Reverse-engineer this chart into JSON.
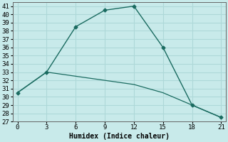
{
  "title": "",
  "xlabel": "Humidex (Indice chaleur)",
  "background_color": "#c8eaea",
  "grid_color": "#aed8d8",
  "line_color": "#1a6b60",
  "x": [
    0,
    3,
    6,
    9,
    12,
    15,
    18,
    21
  ],
  "line1_y": [
    30.5,
    33.0,
    38.5,
    40.5,
    41.0,
    36.0,
    29.0,
    27.5
  ],
  "line2_y": [
    30.5,
    33.0,
    32.5,
    32.0,
    31.5,
    30.5,
    29.0,
    27.5
  ],
  "ylim": [
    27,
    41.5
  ],
  "xlim": [
    -0.5,
    21.5
  ],
  "xticks": [
    0,
    3,
    6,
    9,
    12,
    15,
    18,
    21
  ],
  "yticks": [
    27,
    28,
    29,
    30,
    31,
    32,
    33,
    34,
    35,
    36,
    37,
    38,
    39,
    40,
    41
  ],
  "axis_fontsize": 7,
  "tick_fontsize": 6.5
}
